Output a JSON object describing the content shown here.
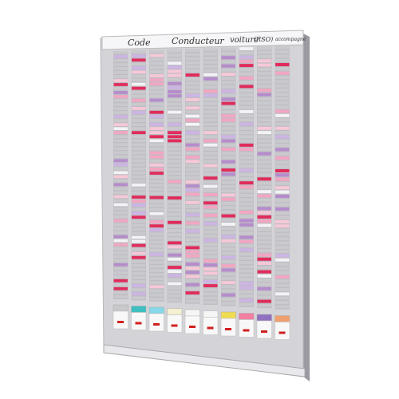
{
  "header": {
    "labels": [
      "Code",
      "Conducteur",
      "voiture",
      "(RSO)",
      "accompagné"
    ]
  }
}
